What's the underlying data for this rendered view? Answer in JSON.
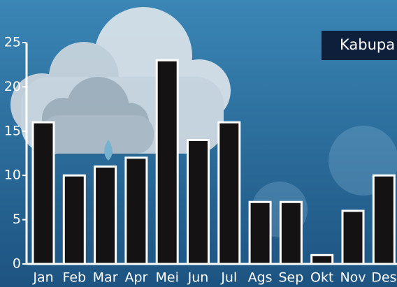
{
  "chart_data": {
    "type": "bar",
    "title": "Kabupa",
    "categories": [
      "Jan",
      "Feb",
      "Mar",
      "Apr",
      "Mei",
      "Jun",
      "Jul",
      "Ags",
      "Sep",
      "Okt",
      "Nov",
      "Des"
    ],
    "values": [
      16,
      10,
      11,
      12,
      23,
      14,
      16,
      7,
      7,
      1,
      6,
      10
    ],
    "color": "#141212",
    "ylim": [
      0,
      25
    ],
    "yticks": [
      0,
      5,
      10,
      15,
      20,
      25
    ]
  }
}
